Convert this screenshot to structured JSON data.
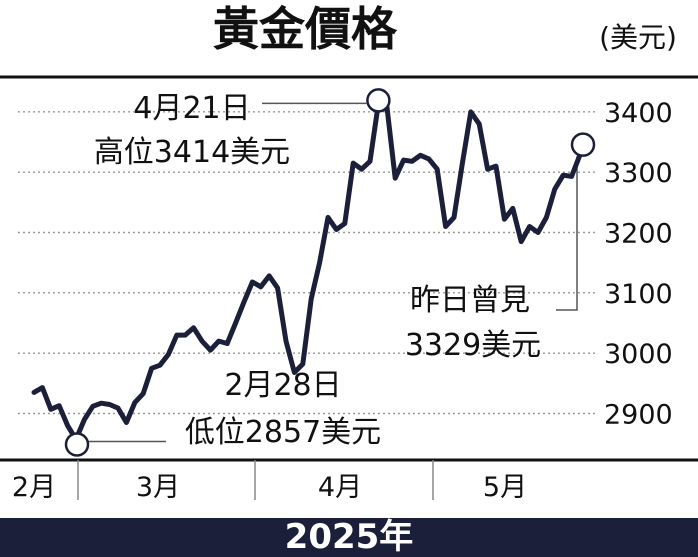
{
  "chart_data": {
    "type": "line",
    "title": "黃金價格",
    "unit": "(美元)",
    "footer": "2025年",
    "y_ticks": [
      2900,
      3000,
      3100,
      3200,
      3300,
      3400
    ],
    "x_ticks": [
      "2月",
      "3月",
      "4月",
      "5月"
    ],
    "series": [
      {
        "values": [
          2935,
          2943,
          2907,
          2913,
          2880,
          2857,
          2890,
          2912,
          2917,
          2915,
          2909,
          2885,
          2918,
          2933,
          2975,
          2980,
          2998,
          3030,
          3030,
          3042,
          3020,
          3005,
          3020,
          3016,
          3050,
          3085,
          3118,
          3110,
          3128,
          3108,
          3020,
          2968,
          2982,
          3090,
          3150,
          3225,
          3205,
          3215,
          3315,
          3305,
          3318,
          3414,
          3410,
          3290,
          3320,
          3318,
          3328,
          3322,
          3305,
          3210,
          3225,
          3315,
          3400,
          3380,
          3305,
          3310,
          3222,
          3240,
          3185,
          3210,
          3200,
          3225,
          3272,
          3295,
          3293,
          3329
        ]
      }
    ],
    "annotations": [
      {
        "label": "4月21日",
        "sublabel": "高位3414美元",
        "value": 3414
      },
      {
        "label": "2月28日",
        "sublabel": "低位2857美元",
        "value": 2857
      },
      {
        "label": "昨日曾見",
        "sublabel": "3329美元",
        "value": 3329
      }
    ],
    "ylim": [
      2850,
      3450
    ],
    "grid": true
  }
}
